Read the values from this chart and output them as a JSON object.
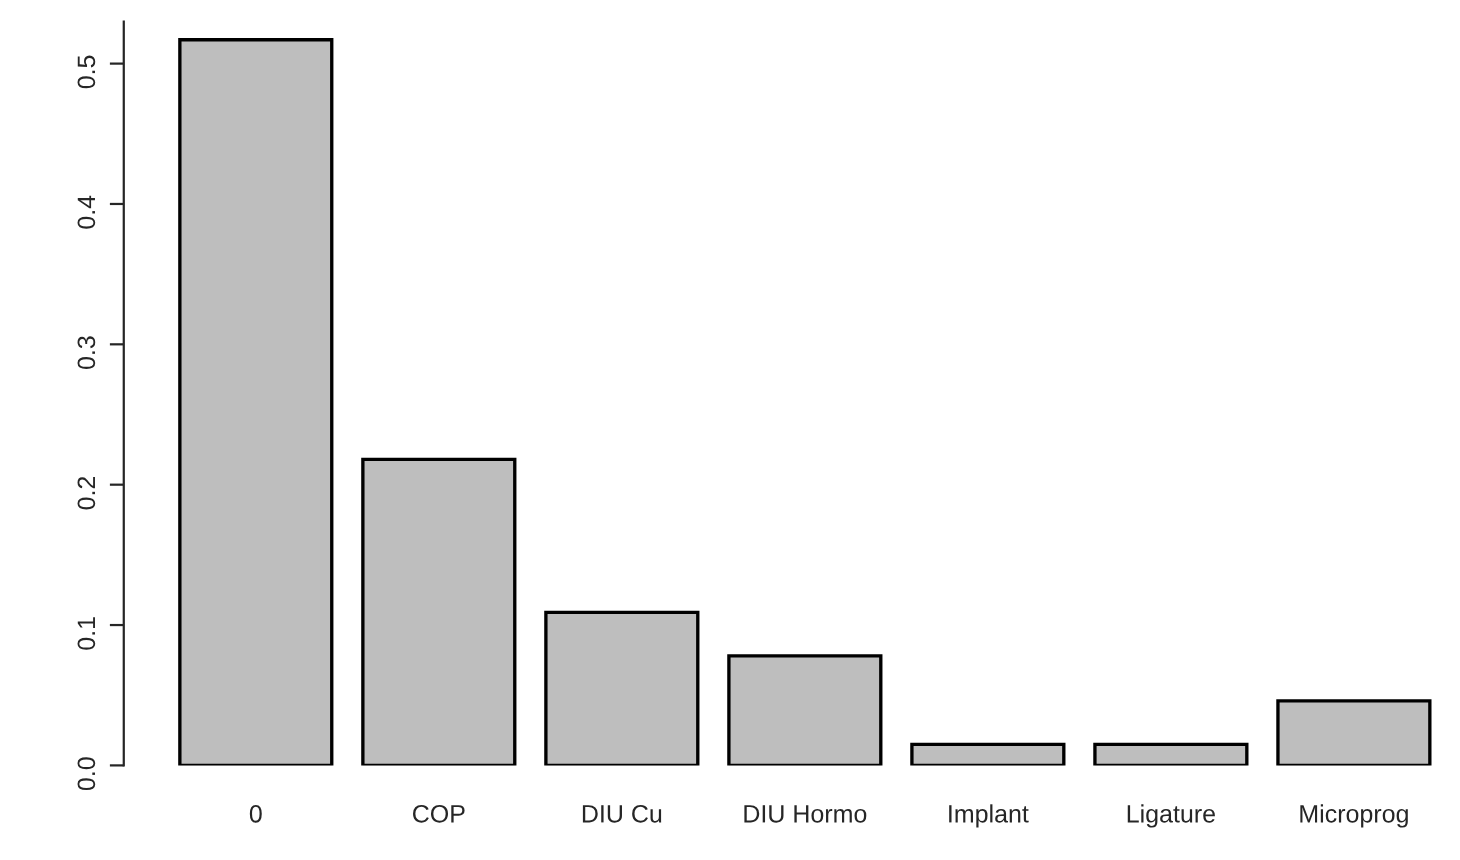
{
  "chart_data": {
    "type": "bar",
    "categories": [
      "0",
      "COP",
      "DIU Cu",
      "DIU Hormo",
      "Implant",
      "Ligature",
      "Microprog"
    ],
    "values": [
      0.517,
      0.218,
      0.109,
      0.078,
      0.015,
      0.015,
      0.046
    ],
    "color": "#bebebe",
    "ylim": [
      0,
      0.53
    ],
    "yticks": [
      {
        "value": 0,
        "label": "0.0"
      },
      0.1,
      0.2,
      0.3,
      0.4,
      0.5
    ],
    "grid": false
  }
}
